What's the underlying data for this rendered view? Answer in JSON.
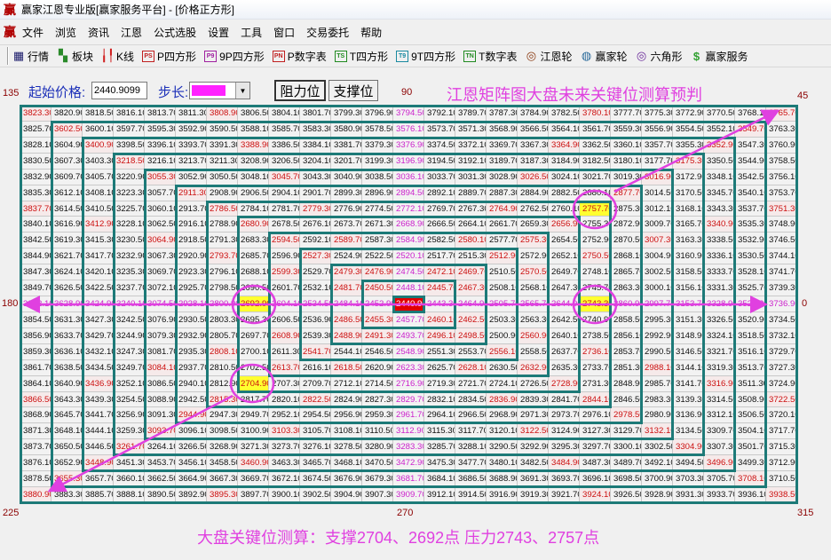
{
  "window": {
    "title": "赢家江恩专业版[赢家服务平台] - [价格正方形]",
    "logo": "赢"
  },
  "menu": [
    "文件",
    "浏览",
    "资讯",
    "江恩",
    "公式选股",
    "设置",
    "工具",
    "窗口",
    "交易委托",
    "帮助"
  ],
  "toolbar": [
    {
      "label": "行情",
      "icon": "table-icon",
      "glyph": "▦",
      "color": "#1a1a6a"
    },
    {
      "label": "板块",
      "icon": "blocks-icon",
      "glyph": "▚",
      "color": "#2a8a2a"
    },
    {
      "label": "K线",
      "icon": "candlestick-icon",
      "glyph": "╽╿",
      "color": "#d02020"
    },
    {
      "label": "P四方形",
      "icon": "ps-icon",
      "glyph": "PS",
      "color": "#c02020"
    },
    {
      "label": "9P四方形",
      "icon": "p9-icon",
      "glyph": "P9",
      "color": "#a020a0"
    },
    {
      "label": "P数字表",
      "icon": "pn-icon",
      "glyph": "PN",
      "color": "#c02020"
    },
    {
      "label": "T四方形",
      "icon": "ts-icon",
      "glyph": "TS",
      "color": "#208a20"
    },
    {
      "label": "9T四方形",
      "icon": "t9-icon",
      "glyph": "T9",
      "color": "#1a8aa0"
    },
    {
      "label": "T数字表",
      "icon": "tn-icon",
      "glyph": "TN",
      "color": "#208a20"
    },
    {
      "label": "江恩轮",
      "icon": "gann-wheel-icon",
      "glyph": "◎",
      "color": "#8a3a10"
    },
    {
      "label": "赢家轮",
      "icon": "winner-wheel-icon",
      "glyph": "◍",
      "color": "#2a6a9a"
    },
    {
      "label": "六角形",
      "icon": "hexagon-icon",
      "glyph": "◎",
      "color": "#6a2a9a"
    },
    {
      "label": "赢家服务",
      "icon": "dollar-icon",
      "glyph": "$",
      "color": "#30a030"
    }
  ],
  "controls": {
    "start_price_label": "起始价格:",
    "start_price_value": "2440.9099",
    "step_label": "步长:",
    "step_color": "#ff22ff",
    "resistance_button": "阻力位",
    "support_button": "支撑位"
  },
  "headline": "江恩矩阵图大盘未来关键位测算预判",
  "footline": "大盘关键位测算：支撑2704、2692点  压力2743、2757点",
  "angles": {
    "top_left": "135",
    "top_center": "90",
    "top_right": "45",
    "left": "180",
    "right": "0",
    "bottom_left": "225",
    "bottom_center": "270",
    "bottom_right": "315"
  },
  "colors": {
    "ring_line": "#1d7a78",
    "angle_red": "#cc1010",
    "cross_magenta": "#cc22cc",
    "annotation_magenta": "#e040e0",
    "center_bg": "#e00000",
    "key_bg": "#ffff30"
  },
  "highlights": {
    "center": "2440.90",
    "key_levels": [
      "2757.70",
      "2743.30",
      "2692.90",
      "2704.90"
    ]
  },
  "grid": [
    [
      "3823.30",
      "3820.90",
      "3818.50",
      "3816.10",
      "3813.70",
      "3811.30",
      "3808.90",
      "3806.50",
      "3804.10",
      "3801.70",
      "3799.30",
      "3796.90",
      "3794.50",
      "3792.10",
      "3789.70",
      "3787.30",
      "3784.90",
      "3782.50",
      "3780.10",
      "3777.70",
      "3775.30",
      "3772.90",
      "3770.50",
      "3768.10",
      "3765.70"
    ],
    [
      "3825.70",
      "3602.50",
      "3600.10",
      "3597.70",
      "3595.30",
      "3592.90",
      "3590.50",
      "3588.10",
      "3585.70",
      "3583.30",
      "3580.90",
      "3578.50",
      "3576.10",
      "3573.70",
      "3571.30",
      "3568.90",
      "3566.50",
      "3564.10",
      "3561.70",
      "3559.30",
      "3556.90",
      "3554.50",
      "3552.10",
      "3549.70",
      "3763.30"
    ],
    [
      "3828.10",
      "3604.90",
      "3400.90",
      "3398.50",
      "3396.10",
      "3393.70",
      "3391.30",
      "3388.90",
      "3386.50",
      "3384.10",
      "3381.70",
      "3379.30",
      "3376.90",
      "3374.50",
      "3372.10",
      "3369.70",
      "3367.30",
      "3364.90",
      "3362.50",
      "3360.10",
      "3357.70",
      "3355.30",
      "3352.90",
      "3547.30",
      "3760.90"
    ],
    [
      "3830.50",
      "3607.30",
      "3403.30",
      "3218.50",
      "3216.10",
      "3213.70",
      "3211.30",
      "3208.90",
      "3206.50",
      "3204.10",
      "3201.70",
      "3199.30",
      "3196.90",
      "3194.50",
      "3192.10",
      "3189.70",
      "3187.30",
      "3184.90",
      "3182.50",
      "3180.10",
      "3177.70",
      "3175.30",
      "3350.50",
      "3544.90",
      "3758.50"
    ],
    [
      "3832.90",
      "3609.70",
      "3405.70",
      "3220.90",
      "3055.30",
      "3052.90",
      "3050.50",
      "3048.10",
      "3045.70",
      "3043.30",
      "3040.90",
      "3038.50",
      "3036.10",
      "3033.70",
      "3031.30",
      "3028.90",
      "3026.50",
      "3024.10",
      "3021.70",
      "3019.30",
      "3016.90",
      "3172.90",
      "3348.10",
      "3542.50",
      "3756.10"
    ],
    [
      "3835.30",
      "3612.10",
      "3408.10",
      "3223.30",
      "3057.70",
      "2911.30",
      "2908.90",
      "2906.50",
      "2904.10",
      "2901.70",
      "2899.30",
      "2896.90",
      "2894.50",
      "2892.10",
      "2889.70",
      "2887.30",
      "2884.90",
      "2882.50",
      "2880.10",
      "2877.70",
      "3014.50",
      "3170.50",
      "3345.70",
      "3540.10",
      "3753.70"
    ],
    [
      "3837.70",
      "3614.50",
      "3410.50",
      "3225.70",
      "3060.10",
      "2913.70",
      "2786.50",
      "2784.10",
      "2781.70",
      "2779.30",
      "2776.90",
      "2774.50",
      "2772.10",
      "2769.70",
      "2767.30",
      "2764.90",
      "2762.50",
      "2760.10",
      "2757.70",
      "2875.30",
      "3012.10",
      "3168.10",
      "3343.30",
      "3537.70",
      "3751.30"
    ],
    [
      "3840.10",
      "3616.90",
      "3412.90",
      "3228.10",
      "3062.50",
      "2916.10",
      "2788.90",
      "2680.90",
      "2678.50",
      "2676.10",
      "2673.70",
      "2671.30",
      "2668.90",
      "2666.50",
      "2664.10",
      "2661.70",
      "2659.30",
      "2656.90",
      "2755.30",
      "2872.90",
      "3009.70",
      "3165.70",
      "3340.90",
      "3535.30",
      "3748.90"
    ],
    [
      "3842.50",
      "3619.30",
      "3415.30",
      "3230.50",
      "3064.90",
      "2918.50",
      "2791.30",
      "2683.30",
      "2594.50",
      "2592.10",
      "2589.70",
      "2587.30",
      "2584.90",
      "2582.50",
      "2580.10",
      "2577.70",
      "2575.30",
      "2654.50",
      "2752.90",
      "2870.50",
      "3007.30",
      "3163.30",
      "3338.50",
      "3532.90",
      "3746.50"
    ],
    [
      "3844.90",
      "3621.70",
      "3417.70",
      "3232.90",
      "3067.30",
      "2920.90",
      "2793.70",
      "2685.70",
      "2596.90",
      "2527.30",
      "2524.90",
      "2522.50",
      "2520.10",
      "2517.70",
      "2515.30",
      "2512.90",
      "2572.90",
      "2652.10",
      "2750.50",
      "2868.10",
      "3004.90",
      "3160.90",
      "3336.10",
      "3530.50",
      "3744.10"
    ],
    [
      "3847.30",
      "3624.10",
      "3420.10",
      "3235.30",
      "3069.70",
      "2923.30",
      "2796.10",
      "2688.10",
      "2599.30",
      "2529.70",
      "2479.30",
      "2476.90",
      "2474.50",
      "2472.10",
      "2469.70",
      "2510.50",
      "2570.50",
      "2649.70",
      "2748.10",
      "2865.70",
      "3002.50",
      "3158.50",
      "3333.70",
      "3528.10",
      "3741.70"
    ],
    [
      "3849.70",
      "3626.50",
      "3422.50",
      "3237.70",
      "3072.10",
      "2925.70",
      "2798.50",
      "2690.50",
      "2601.70",
      "2532.10",
      "2481.70",
      "2450.50",
      "2448.10",
      "2445.70",
      "2467.30",
      "2508.10",
      "2568.10",
      "2647.30",
      "2745.70",
      "2863.30",
      "3000.10",
      "3156.10",
      "3331.30",
      "3525.70",
      "3739.30"
    ],
    [
      "3852.10",
      "3628.90",
      "3424.90",
      "3240.10",
      "3074.50",
      "2928.10",
      "2800.90",
      "2692.90",
      "2604.10",
      "2534.50",
      "2484.10",
      "2452.90",
      "2440.90",
      "2443.30",
      "2464.90",
      "2505.70",
      "2565.70",
      "2644.90",
      "2743.30",
      "2860.90",
      "2997.70",
      "3153.70",
      "3328.90",
      "3523.30",
      "3736.90"
    ],
    [
      "3854.50",
      "3631.30",
      "3427.30",
      "3242.50",
      "3076.90",
      "2930.50",
      "2803.30",
      "2695.30",
      "2606.50",
      "2536.90",
      "2486.50",
      "2455.30",
      "2457.70",
      "2460.10",
      "2462.50",
      "2503.30",
      "2563.30",
      "2642.50",
      "2740.90",
      "2858.50",
      "2995.30",
      "3151.30",
      "3326.50",
      "3520.90",
      "3734.50"
    ],
    [
      "3856.90",
      "3633.70",
      "3429.70",
      "3244.90",
      "3079.30",
      "2932.90",
      "2805.70",
      "2697.70",
      "2608.90",
      "2539.30",
      "2488.90",
      "2491.30",
      "2493.70",
      "2496.10",
      "2498.50",
      "2500.90",
      "2560.90",
      "2640.10",
      "2738.50",
      "2856.10",
      "2992.90",
      "3148.90",
      "3324.10",
      "3518.50",
      "3732.10"
    ],
    [
      "3859.30",
      "3636.10",
      "3432.10",
      "3247.30",
      "3081.70",
      "2935.30",
      "2808.10",
      "2700.10",
      "2611.30",
      "2541.70",
      "2544.10",
      "2546.50",
      "2548.90",
      "2551.30",
      "2553.70",
      "2556.10",
      "2558.50",
      "2637.70",
      "2736.10",
      "2853.70",
      "2990.50",
      "3146.50",
      "3321.70",
      "3516.10",
      "3729.70"
    ],
    [
      "3861.70",
      "3638.50",
      "3434.50",
      "3249.70",
      "3084.10",
      "2937.70",
      "2810.50",
      "2702.50",
      "2613.70",
      "2616.10",
      "2618.50",
      "2620.90",
      "2623.30",
      "2625.70",
      "2628.10",
      "2630.50",
      "2632.90",
      "2635.30",
      "2733.70",
      "2851.30",
      "2988.10",
      "3144.10",
      "3319.30",
      "3513.70",
      "3727.30"
    ],
    [
      "3864.10",
      "3640.90",
      "3436.90",
      "3252.10",
      "3086.50",
      "2940.10",
      "2812.90",
      "2704.90",
      "2707.30",
      "2709.70",
      "2712.10",
      "2714.50",
      "2716.90",
      "2719.30",
      "2721.70",
      "2724.10",
      "2726.50",
      "2728.90",
      "2731.30",
      "2848.90",
      "2985.70",
      "3141.70",
      "3316.90",
      "3511.30",
      "3724.90"
    ],
    [
      "3866.50",
      "3643.30",
      "3439.30",
      "3254.50",
      "3088.90",
      "2942.50",
      "2815.30",
      "2817.70",
      "2820.10",
      "2822.50",
      "2824.90",
      "2827.30",
      "2829.70",
      "2832.10",
      "2834.50",
      "2836.90",
      "2839.30",
      "2841.70",
      "2844.10",
      "2846.50",
      "2983.30",
      "3139.30",
      "3314.50",
      "3508.90",
      "3722.50"
    ],
    [
      "3868.90",
      "3645.70",
      "3441.70",
      "3256.90",
      "3091.30",
      "2944.90",
      "2947.30",
      "2949.70",
      "2952.10",
      "2954.50",
      "2956.90",
      "2959.30",
      "2961.70",
      "2964.10",
      "2966.50",
      "2968.90",
      "2971.30",
      "2973.70",
      "2976.10",
      "2978.50",
      "2980.90",
      "3136.90",
      "3312.10",
      "3506.50",
      "3720.10"
    ],
    [
      "3871.30",
      "3648.10",
      "3444.10",
      "3259.30",
      "3093.70",
      "3096.10",
      "3098.50",
      "3100.90",
      "3103.30",
      "3105.70",
      "3108.10",
      "3110.50",
      "3112.90",
      "3115.30",
      "3117.70",
      "3120.10",
      "3122.50",
      "3124.90",
      "3127.30",
      "3129.70",
      "3132.10",
      "3134.50",
      "3309.70",
      "3504.10",
      "3717.70"
    ],
    [
      "3873.70",
      "3650.50",
      "3446.50",
      "3261.70",
      "3264.10",
      "3266.50",
      "3268.90",
      "3271.30",
      "3273.70",
      "3276.10",
      "3278.50",
      "3280.90",
      "3283.30",
      "3285.70",
      "3288.10",
      "3290.50",
      "3292.90",
      "3295.30",
      "3297.70",
      "3300.10",
      "3302.50",
      "3304.90",
      "3307.30",
      "3501.70",
      "3715.30"
    ],
    [
      "3876.10",
      "3652.90",
      "3448.90",
      "3451.30",
      "3453.70",
      "3456.10",
      "3458.50",
      "3460.90",
      "3463.30",
      "3465.70",
      "3468.10",
      "3470.50",
      "3472.90",
      "3475.30",
      "3477.70",
      "3480.10",
      "3482.50",
      "3484.90",
      "3487.30",
      "3489.70",
      "3492.10",
      "3494.50",
      "3496.90",
      "3499.30",
      "3712.90"
    ],
    [
      "3878.50",
      "3655.30",
      "3657.70",
      "3660.10",
      "3662.50",
      "3664.90",
      "3667.30",
      "3669.70",
      "3672.10",
      "3674.50",
      "3676.90",
      "3679.30",
      "3681.70",
      "3684.10",
      "3686.50",
      "3688.90",
      "3691.30",
      "3693.70",
      "3696.10",
      "3698.50",
      "3700.90",
      "3703.30",
      "3705.70",
      "3708.10",
      "3710.50"
    ],
    [
      "3880.90",
      "3883.30",
      "3885.70",
      "3888.10",
      "3890.50",
      "3892.90",
      "3895.30",
      "3897.70",
      "3900.10",
      "3902.50",
      "3904.90",
      "3907.30",
      "3909.70",
      "3912.10",
      "3914.50",
      "3916.90",
      "3919.30",
      "3921.70",
      "3924.10",
      "3926.50",
      "3928.90",
      "3931.30",
      "3933.70",
      "3936.10",
      "3938.50"
    ]
  ]
}
